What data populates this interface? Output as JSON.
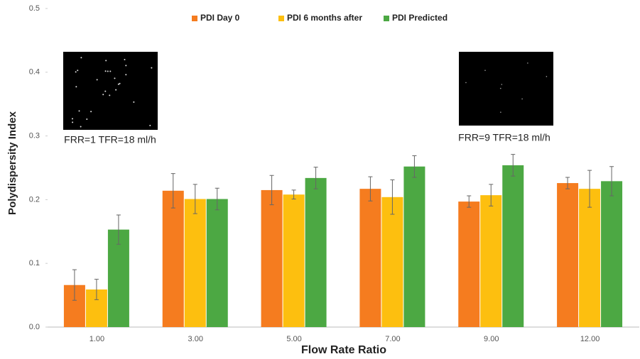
{
  "chart_data": {
    "type": "bar",
    "xlabel": "Flow Rate Ratio",
    "ylabel": "Polydispersity Index",
    "categories": [
      "1.00",
      "3.00",
      "5.00",
      "7.00",
      "9.00",
      "12.00"
    ],
    "series": [
      {
        "name": "PDI Day 0",
        "color": "#f57c1f",
        "values": [
          0.066,
          0.214,
          0.215,
          0.217,
          0.197,
          0.226
        ],
        "errors": [
          0.024,
          0.027,
          0.023,
          0.019,
          0.009,
          0.009
        ]
      },
      {
        "name": "PDI 6 months after",
        "color": "#fdbf0f",
        "values": [
          0.059,
          0.201,
          0.208,
          0.204,
          0.207,
          0.217
        ],
        "errors": [
          0.016,
          0.023,
          0.007,
          0.027,
          0.017,
          0.029
        ]
      },
      {
        "name": "PDI Predicted",
        "color": "#4ca843",
        "values": [
          0.153,
          0.201,
          0.234,
          0.252,
          0.254,
          0.229
        ],
        "errors": [
          0.023,
          0.017,
          0.017,
          0.017,
          0.017,
          0.023
        ]
      }
    ],
    "ylim": [
      0,
      0.5
    ],
    "yticks": [
      {
        "value": 0,
        "label": "0.0"
      },
      0.1,
      0.2,
      0.3,
      0.4,
      0.5
    ],
    "grid": false,
    "legend": "top",
    "annotations": [
      {
        "text": "FRR=1 TFR=18 ml/h"
      },
      {
        "text": "FRR=9 TFR=18 ml/h"
      }
    ]
  }
}
